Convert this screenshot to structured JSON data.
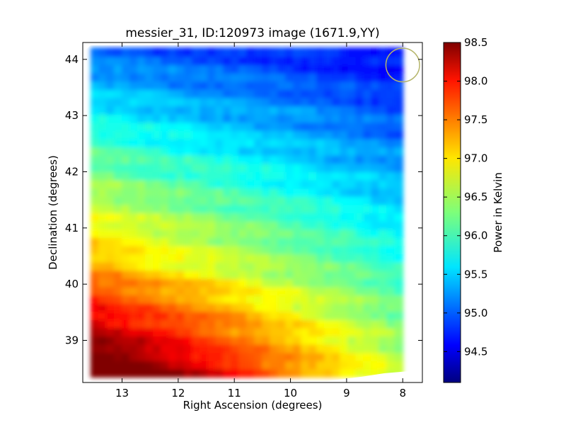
{
  "chart_data": {
    "type": "heatmap",
    "title": "messier_31, ID:120973 image (1671.9,YY)",
    "xlabel": "Right Ascension (degrees)",
    "ylabel": "Declination (degrees)",
    "xlim": [
      13.7,
      7.65
    ],
    "ylim": [
      38.25,
      44.3
    ],
    "x_ticks": [
      {
        "value": 13,
        "label": "13"
      },
      {
        "value": 12,
        "label": "12"
      },
      {
        "value": 11,
        "label": "11"
      },
      {
        "value": 10,
        "label": "10"
      },
      {
        "value": 9,
        "label": "9"
      },
      {
        "value": 8,
        "label": "8"
      }
    ],
    "y_ticks": [
      {
        "value": 39,
        "label": "39"
      },
      {
        "value": 40,
        "label": "40"
      },
      {
        "value": 41,
        "label": "41"
      },
      {
        "value": 42,
        "label": "42"
      },
      {
        "value": 43,
        "label": "43"
      },
      {
        "value": 44,
        "label": "44"
      }
    ],
    "colormap": "jet",
    "colorbar": {
      "label": "Power in Kelvin",
      "range": [
        94.1,
        98.5
      ],
      "ticks": [
        {
          "value": 94.5,
          "label": "94.5"
        },
        {
          "value": 95.0,
          "label": "95.0"
        },
        {
          "value": 95.5,
          "label": "95.5"
        },
        {
          "value": 96.0,
          "label": "96.0"
        },
        {
          "value": 96.5,
          "label": "96.5"
        },
        {
          "value": 97.0,
          "label": "97.0"
        },
        {
          "value": 97.5,
          "label": "97.5"
        },
        {
          "value": 98.0,
          "label": "98.0"
        },
        {
          "value": 98.5,
          "label": "98.5"
        }
      ]
    },
    "grid": false,
    "beam_marker": {
      "center_ra": 8.0,
      "center_dec": 43.9,
      "radius_deg": 0.3,
      "color": "#b5b56a"
    },
    "approx_field": {
      "ra_corners": [
        13.55,
        8.0
      ],
      "dec_corners": [
        38.35,
        44.2
      ],
      "values_corner_bottom_left": 98.3,
      "values_corner_top_left": 95.1,
      "values_corner_bottom_right": 96.6,
      "values_corner_top_right": 94.6
    }
  }
}
